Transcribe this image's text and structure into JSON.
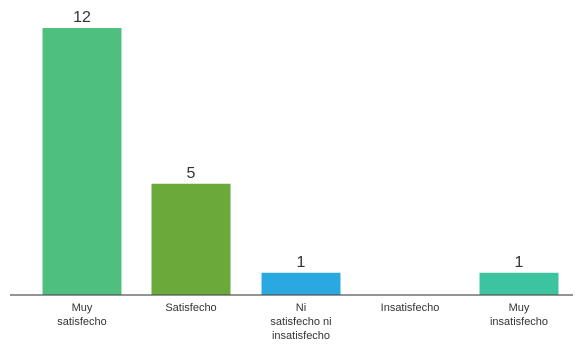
{
  "chart_data": {
    "type": "bar",
    "categories": [
      [
        "Muy",
        "satisfecho"
      ],
      [
        "Satisfecho"
      ],
      [
        "Ni",
        "satisfecho ni",
        "insatisfecho"
      ],
      [
        "Insatisfecho"
      ],
      [
        "Muy",
        "insatisfecho"
      ]
    ],
    "values": [
      12,
      5,
      1,
      0,
      1
    ],
    "data_labels": [
      "12",
      "5",
      "1",
      "",
      "1"
    ],
    "colors": [
      "#4fbf7f",
      "#6aaa3a",
      "#2aa9e0",
      "#4fbf7f",
      "#3cc4a0"
    ],
    "ylim": [
      0,
      12
    ],
    "grid": false,
    "legend": "none"
  }
}
